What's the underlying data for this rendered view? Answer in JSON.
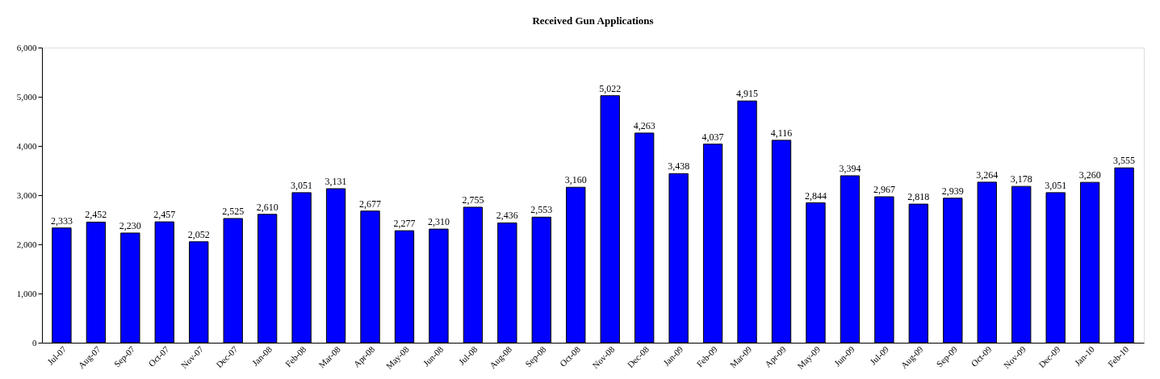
{
  "chart_data": {
    "type": "bar",
    "title": "Received Gun Applications",
    "categories": [
      "Jul-07",
      "Aug-07",
      "Sep-07",
      "Oct-07",
      "Nov-07",
      "Dec-07",
      "Jan-08",
      "Feb-08",
      "Mar-08",
      "Apr-08",
      "May-08",
      "Jun-08",
      "Jul-08",
      "Aug-08",
      "Sep-08",
      "Oct-08",
      "Nov-08",
      "Dec-08",
      "Jan-09",
      "Feb-09",
      "Mar-09",
      "Apr-09",
      "May-09",
      "Jun-09",
      "Jul-09",
      "Aug-09",
      "Sep-09",
      "Oct-09",
      "Nov-09",
      "Dec-09",
      "Jan-10",
      "Feb-10"
    ],
    "values": [
      2333,
      2452,
      2230,
      2457,
      2052,
      2525,
      2610,
      3051,
      3131,
      2677,
      2277,
      2310,
      2755,
      2436,
      2553,
      3160,
      5022,
      4263,
      3438,
      4037,
      4915,
      4116,
      2844,
      3394,
      2967,
      2818,
      2939,
      3264,
      3178,
      3051,
      3260,
      3555
    ],
    "color": "#0000ff",
    "ylim": [
      0,
      6000
    ],
    "yticks": [
      0,
      {
        "value": 1000,
        "label": "1,000"
      },
      {
        "value": 2000,
        "label": "2,000"
      },
      {
        "value": 3000,
        "label": "3,000"
      },
      {
        "value": 4000,
        "label": "4,000"
      },
      {
        "value": 5000,
        "label": "5,000"
      },
      {
        "value": 6000,
        "label": "6,000"
      }
    ],
    "value_labels": [
      "2,333",
      "2,452",
      "2,230",
      "2,457",
      "2,052",
      "2,525",
      "2,610",
      "3,051",
      "3,131",
      "2,677",
      "2,277",
      "2,310",
      "2,755",
      "2,436",
      "2,553",
      "3,160",
      "5,022",
      "4,263",
      "3,438",
      "4,037",
      "4,915",
      "4,116",
      "2,844",
      "3,394",
      "2,967",
      "2,818",
      "2,939",
      "3,264",
      "3,178",
      "3,051",
      "3,260",
      "3,555"
    ],
    "grid": false
  }
}
